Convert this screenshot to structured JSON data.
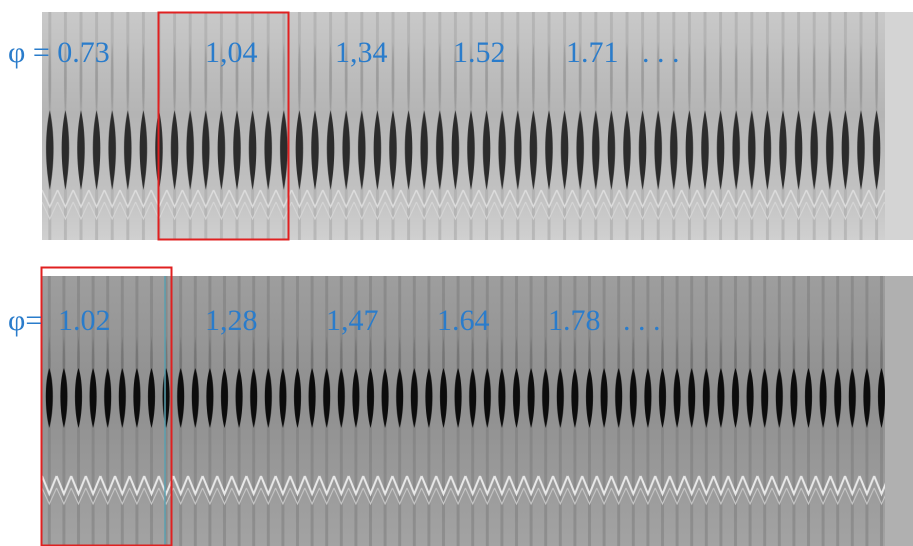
{
  "panels": [
    {
      "labels": [
        "φ = 0.73",
        "1,04",
        "1,34",
        "1.52",
        "1.71",
        ". . ."
      ]
    },
    {
      "labels": [
        "φ=",
        "1.02",
        "1,28",
        "1,47",
        "1.64",
        "1.78",
        ". . ."
      ]
    }
  ]
}
